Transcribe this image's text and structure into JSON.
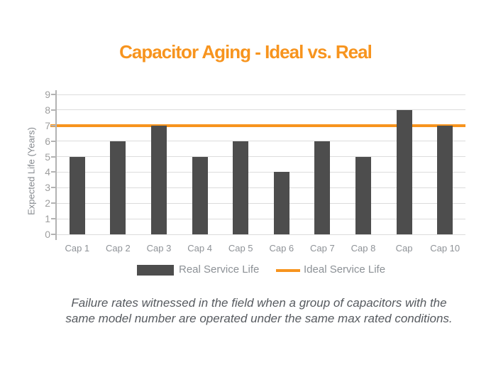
{
  "chart_data": {
    "type": "bar",
    "title": "Capacitor Aging - Ideal vs. Real",
    "ylabel": "Expected Life (Years)",
    "xlabel": "",
    "categories": [
      "Cap 1",
      "Cap 2",
      "Cap 3",
      "Cap 4",
      "Cap 5",
      "Cap 6",
      "Cap 7",
      "Cap 8",
      "Cap",
      "Cap 10"
    ],
    "series": [
      {
        "name": "Real Service Life",
        "type": "bar",
        "values": [
          5,
          6,
          7,
          5,
          6,
          4,
          6,
          5,
          8,
          7
        ],
        "color": "#4D4D4D"
      },
      {
        "name": "Ideal Service Life",
        "type": "line",
        "value": 7,
        "color": "#F7941E"
      }
    ],
    "ylim": [
      0,
      9
    ],
    "ytick_step": 1,
    "grid": true,
    "legend_position": "bottom"
  },
  "caption": {
    "line1": "Failure rates witnessed in the field when a group of capacitors with the",
    "line2": "same model number are operated under the same max rated conditions."
  },
  "colors": {
    "accent": "#F7941E",
    "bar": "#4D4D4D",
    "grid": "#DCDCDC",
    "axis": "#B3B3B3",
    "y_tick_label": "#9E9E9E",
    "x_category_label": "#8E9297",
    "legend_label": "#8C9196",
    "axis_title": "#85898E",
    "caption_text": "#565A5F",
    "background": "#FFFFFF"
  }
}
